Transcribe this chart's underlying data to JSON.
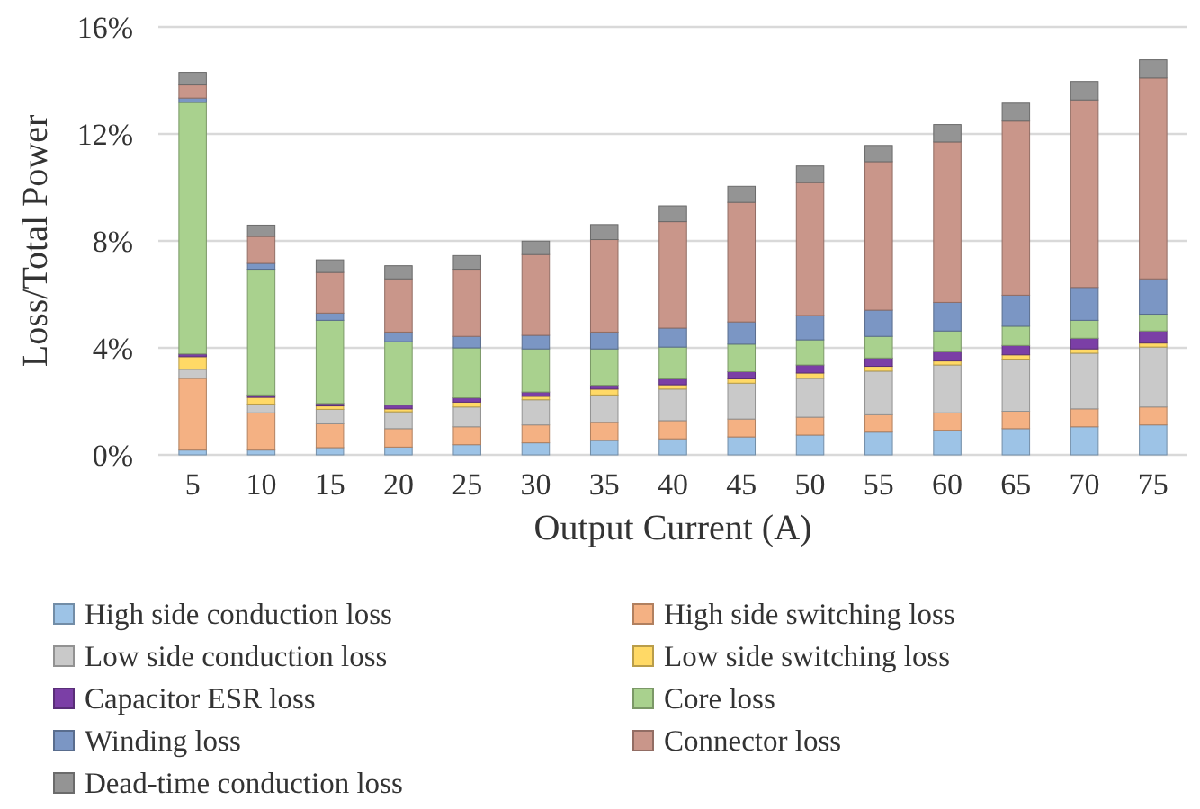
{
  "chart_data": {
    "type": "bar",
    "stacked": true,
    "xlabel": "Output Current (A)",
    "ylabel": "Loss/Total Power",
    "categories": [
      "5",
      "10",
      "15",
      "20",
      "25",
      "30",
      "35",
      "40",
      "45",
      "50",
      "55",
      "60",
      "65",
      "70",
      "75"
    ],
    "ylim": [
      0,
      16
    ],
    "yticks": [
      {
        "value": 0,
        "label": "0%"
      },
      {
        "value": 4,
        "label": "4%"
      },
      {
        "value": 8,
        "label": "8%"
      },
      {
        "value": 12,
        "label": "12%"
      },
      {
        "value": 16,
        "label": "16%"
      }
    ],
    "grid": "y",
    "legend": "bottom",
    "series": [
      {
        "name": "High side conduction loss",
        "color": "#9dc3e6",
        "values": [
          0.18,
          0.18,
          0.27,
          0.29,
          0.38,
          0.45,
          0.54,
          0.6,
          0.67,
          0.74,
          0.85,
          0.92,
          0.98,
          1.05,
          1.12
        ]
      },
      {
        "name": "High side switching loss",
        "color": "#f4b183",
        "values": [
          2.68,
          1.39,
          0.89,
          0.69,
          0.67,
          0.67,
          0.67,
          0.68,
          0.67,
          0.67,
          0.65,
          0.65,
          0.65,
          0.67,
          0.67
        ]
      },
      {
        "name": "Low side conduction loss",
        "color": "#c9c9c9",
        "values": [
          0.34,
          0.33,
          0.54,
          0.63,
          0.74,
          0.94,
          1.03,
          1.18,
          1.34,
          1.45,
          1.63,
          1.79,
          1.95,
          2.08,
          2.24
        ]
      },
      {
        "name": "Low side switching loss",
        "color": "#ffd966",
        "values": [
          0.47,
          0.25,
          0.13,
          0.11,
          0.18,
          0.13,
          0.22,
          0.16,
          0.16,
          0.2,
          0.18,
          0.15,
          0.16,
          0.16,
          0.15
        ]
      },
      {
        "name": "Capacitor ESR loss",
        "color": "#7b3fa6",
        "values": [
          0.1,
          0.09,
          0.09,
          0.14,
          0.16,
          0.16,
          0.14,
          0.22,
          0.27,
          0.3,
          0.31,
          0.34,
          0.35,
          0.4,
          0.45
        ]
      },
      {
        "name": "Core loss",
        "color": "#a9d18e",
        "values": [
          9.41,
          4.7,
          3.11,
          2.37,
          1.87,
          1.61,
          1.36,
          1.19,
          1.03,
          0.94,
          0.81,
          0.78,
          0.72,
          0.67,
          0.63
        ]
      },
      {
        "name": "Winding loss",
        "color": "#7b96c4",
        "values": [
          0.16,
          0.22,
          0.27,
          0.36,
          0.43,
          0.51,
          0.63,
          0.71,
          0.83,
          0.91,
          0.98,
          1.07,
          1.16,
          1.23,
          1.32
        ]
      },
      {
        "name": "Connector loss",
        "color": "#c9968a",
        "values": [
          0.49,
          1.01,
          1.52,
          1.99,
          2.51,
          3.02,
          3.46,
          3.98,
          4.47,
          4.97,
          5.55,
          6.0,
          6.51,
          7.01,
          7.51
        ]
      },
      {
        "name": "Dead-time conduction loss",
        "color": "#949494",
        "values": [
          0.47,
          0.42,
          0.47,
          0.49,
          0.51,
          0.5,
          0.56,
          0.59,
          0.6,
          0.62,
          0.61,
          0.65,
          0.67,
          0.69,
          0.68
        ]
      }
    ]
  }
}
